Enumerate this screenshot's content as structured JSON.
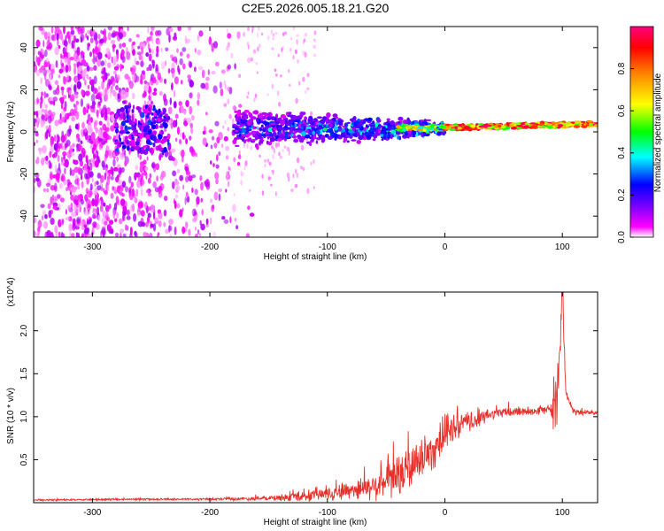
{
  "title": "C2E5.2026.005.18.21.G20",
  "chart_data": [
    {
      "type": "heatmap",
      "name": "spectrogram",
      "xlabel": "Height of straight line (km)",
      "ylabel": "Frequency (Hz)",
      "xlim": [
        -350,
        130
      ],
      "ylim": [
        -50,
        50
      ],
      "xticks": [
        -300,
        -200,
        -100,
        0,
        100
      ],
      "yticks": [
        -40,
        -20,
        0,
        20,
        40
      ],
      "colorbar": {
        "label": "Normalized spectral amplitude",
        "range": [
          0,
          1
        ],
        "ticks": [
          0.0,
          0.2,
          0.4,
          0.6,
          0.8
        ],
        "colormap": [
          "#ffffff",
          "#ff00ff",
          "#8000ff",
          "#0000ff",
          "#00ffff",
          "#00ff00",
          "#ffff00",
          "#ff8000",
          "#ff0000",
          "#ff0080"
        ]
      },
      "regions": [
        {
          "x": [
            -350,
            -180
          ],
          "freq": [
            -50,
            50
          ],
          "amplitude": [
            0.0,
            0.2
          ],
          "pattern": "speckle noise"
        },
        {
          "x": [
            -280,
            -240
          ],
          "freq": [
            -10,
            12
          ],
          "amplitude": [
            0.1,
            0.35
          ],
          "pattern": "dense burst"
        },
        {
          "x": [
            -180,
            -70
          ],
          "freq": [
            -10,
            10
          ],
          "amplitude": [
            0.15,
            0.5
          ],
          "pattern": "band"
        },
        {
          "x": [
            -70,
            0
          ],
          "freq": [
            -5,
            8
          ],
          "amplitude": [
            0.2,
            0.9
          ],
          "pattern": "converging band"
        },
        {
          "x": [
            0,
            130
          ],
          "freq": [
            0,
            5
          ],
          "amplitude": [
            0.6,
            1.0
          ],
          "pattern": "narrow line"
        }
      ]
    },
    {
      "type": "line",
      "name": "snr",
      "xlabel": "Height of straight line (km)",
      "ylabel": "SNR (10 * v/v)",
      "yscale_label": "(x10^4)",
      "xlim": [
        -350,
        130
      ],
      "ylim": [
        0,
        2.45
      ],
      "xticks": [
        -300,
        -200,
        -100,
        0,
        100
      ],
      "yticks": [
        0.5,
        1.0,
        1.5,
        2.0
      ],
      "ytick_labels": [
        "0.5",
        "1.0",
        "1.5",
        "2.0"
      ],
      "color": "#e8302a",
      "trend": {
        "x": [
          -350,
          -250,
          -200,
          -150,
          -120,
          -100,
          -80,
          -60,
          -40,
          -30,
          -20,
          -10,
          0,
          10,
          20,
          30,
          40,
          60,
          80,
          90,
          95,
          98,
          100,
          103,
          110,
          130
        ],
        "y": [
          0.03,
          0.04,
          0.04,
          0.05,
          0.07,
          0.11,
          0.15,
          0.19,
          0.3,
          0.4,
          0.5,
          0.62,
          0.8,
          0.88,
          0.93,
          0.98,
          1.03,
          1.06,
          1.07,
          1.08,
          1.1,
          1.7,
          2.45,
          1.3,
          1.05,
          1.05
        ]
      },
      "noise_amplitude": {
        "x": [
          -350,
          -200,
          -150,
          -100,
          -60,
          -30,
          0,
          20,
          40,
          90,
          95,
          105,
          130
        ],
        "y": [
          0.01,
          0.015,
          0.03,
          0.1,
          0.18,
          0.35,
          0.25,
          0.15,
          0.08,
          0.06,
          0.5,
          0.05,
          0.03
        ]
      }
    }
  ]
}
